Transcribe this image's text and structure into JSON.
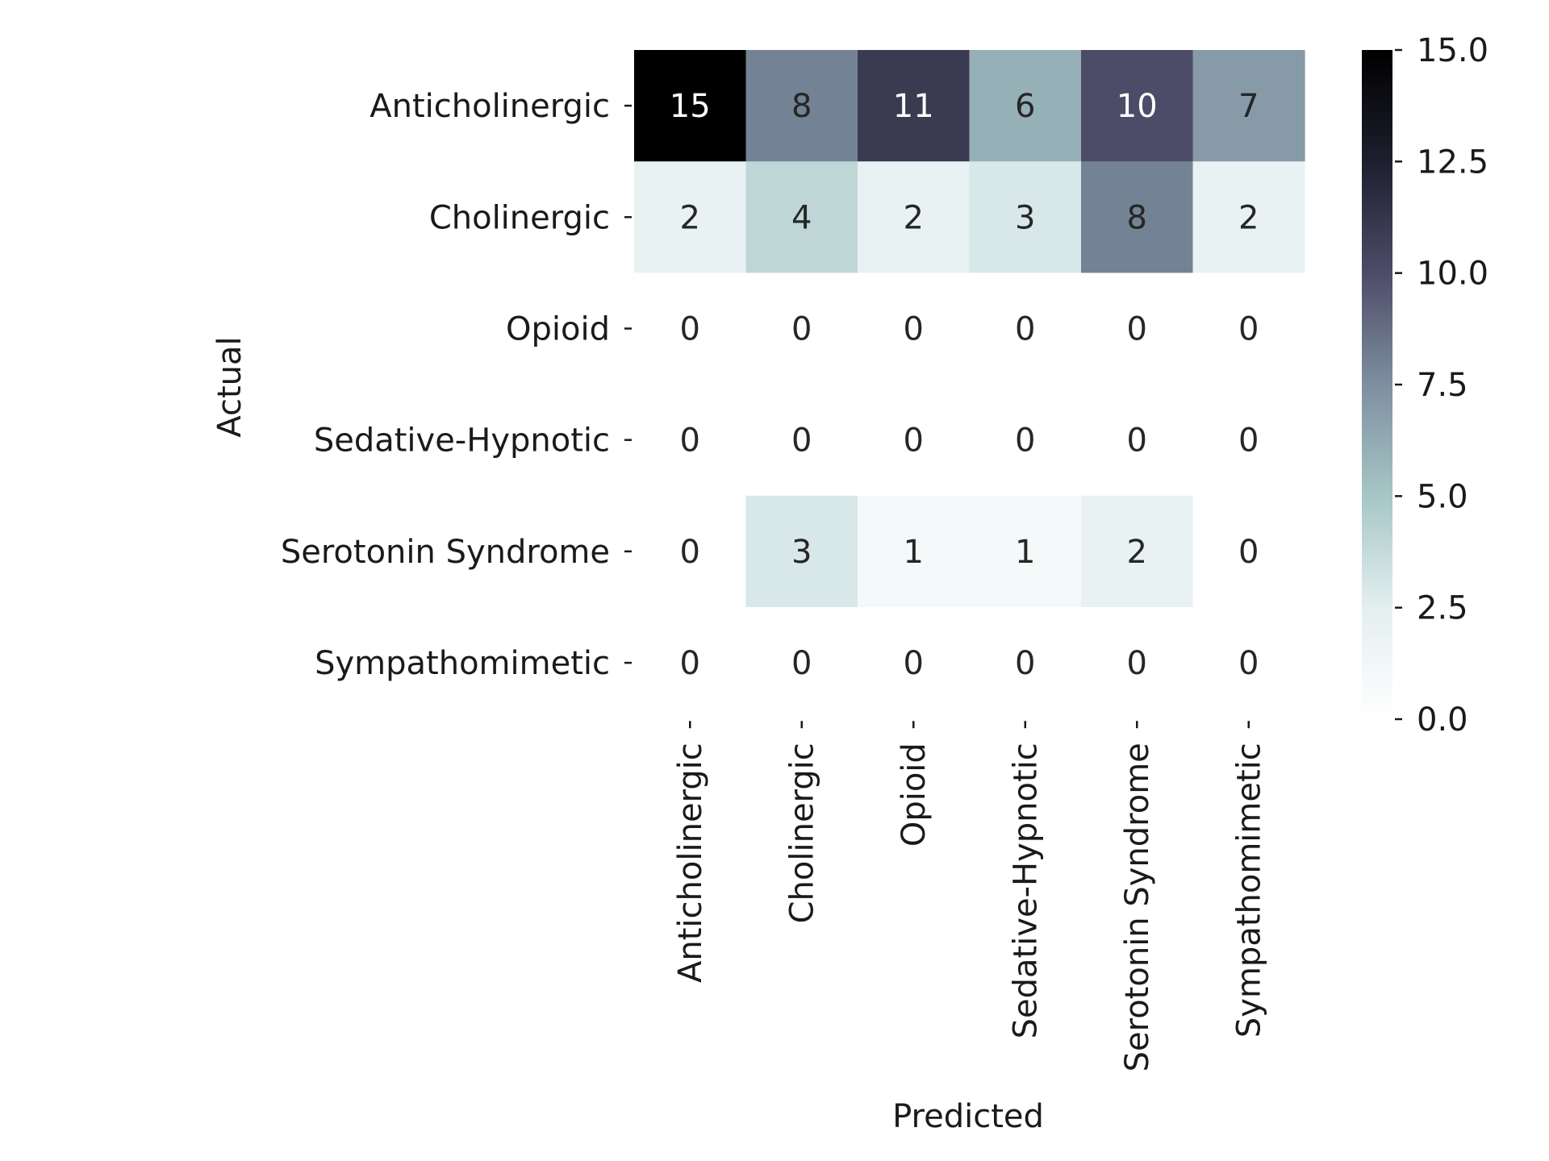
{
  "chart_data": {
    "type": "heatmap",
    "title": "",
    "xlabel": "Predicted",
    "ylabel": "Actual",
    "x_categories": [
      "Anticholinergic",
      "Cholinergic",
      "Opioid",
      "Sedative-Hypnotic",
      "Serotonin Syndrome",
      "Sympathomimetic"
    ],
    "y_categories": [
      "Anticholinergic",
      "Cholinergic",
      "Opioid",
      "Sedative-Hypnotic",
      "Serotonin Syndrome",
      "Sympathomimetic"
    ],
    "values": [
      [
        15,
        8,
        11,
        6,
        10,
        7
      ],
      [
        2,
        4,
        2,
        3,
        8,
        2
      ],
      [
        0,
        0,
        0,
        0,
        0,
        0
      ],
      [
        0,
        0,
        0,
        0,
        0,
        0
      ],
      [
        0,
        3,
        1,
        1,
        2,
        0
      ],
      [
        0,
        0,
        0,
        0,
        0,
        0
      ]
    ],
    "colorbar": {
      "min": 0,
      "max": 15,
      "tick_values": [
        0,
        2.5,
        5,
        7.5,
        10,
        12.5,
        15
      ],
      "tick_labels": [
        "0.0",
        "2.5",
        "5.0",
        "7.5",
        "10.0",
        "12.5",
        "15.0"
      ]
    },
    "colormap": "bone_r",
    "colormap_stops": [
      "#ffffff",
      "#e4efef",
      "#a6c6c6",
      "#7e8fa0",
      "#4d4c68",
      "#1e1e2e",
      "#000000"
    ],
    "grid": false,
    "legend": "colorbar right"
  }
}
